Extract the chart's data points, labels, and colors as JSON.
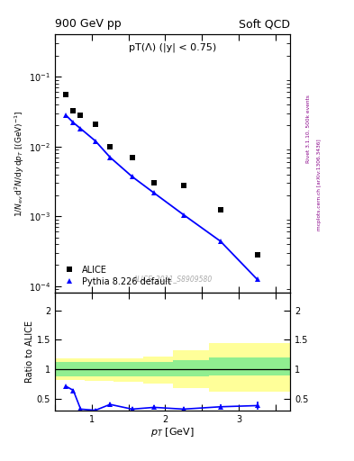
{
  "title_left": "900 GeV pp",
  "title_right": "Soft QCD",
  "annotation": "pT(Λ) (|y| < 0.75)",
  "watermark": "ALICE_2011_S8909580",
  "right_label_top": "Rivet 3.1.10, 500k events",
  "right_label_bot": "mcplots.cern.ch [arXiv:1306.3436]",
  "xlabel": "p_T [GeV]",
  "ylabel_ratio": "Ratio to ALICE",
  "alice_x": [
    0.65,
    0.75,
    0.85,
    1.05,
    1.25,
    1.55,
    1.85,
    2.25,
    2.75,
    3.25
  ],
  "alice_y": [
    0.055,
    0.032,
    0.028,
    0.021,
    0.01,
    0.007,
    0.003,
    0.0028,
    0.00125,
    0.00028
  ],
  "pythia_x": [
    0.65,
    0.75,
    0.85,
    1.05,
    1.25,
    1.55,
    1.85,
    2.25,
    2.75,
    3.25
  ],
  "pythia_y": [
    0.028,
    0.022,
    0.018,
    0.012,
    0.007,
    0.0037,
    0.00215,
    0.00105,
    0.00044,
    0.000125
  ],
  "ratio_x": [
    0.65,
    0.75,
    0.85,
    1.05,
    1.25,
    1.55,
    1.85,
    2.25,
    2.75,
    3.25
  ],
  "ratio_y": [
    0.71,
    0.64,
    0.32,
    0.3,
    0.4,
    0.32,
    0.35,
    0.32,
    0.36,
    0.38
  ],
  "ratio_yerr": [
    0.02,
    0.02,
    0.02,
    0.02,
    0.03,
    0.03,
    0.04,
    0.04,
    0.05,
    0.07
  ],
  "band_x_edges": [
    0.5,
    0.9,
    1.3,
    1.7,
    2.1,
    2.6,
    3.7
  ],
  "band_green_low": [
    0.88,
    0.88,
    0.88,
    0.88,
    0.88,
    0.9
  ],
  "band_green_high": [
    1.12,
    1.12,
    1.12,
    1.12,
    1.15,
    1.2
  ],
  "band_yellow_low": [
    0.82,
    0.8,
    0.78,
    0.75,
    0.68,
    0.62
  ],
  "band_yellow_high": [
    1.18,
    1.18,
    1.18,
    1.22,
    1.32,
    1.45
  ],
  "ylim_main": [
    8e-05,
    0.4
  ],
  "ylim_ratio": [
    0.3,
    2.3
  ],
  "xlim": [
    0.5,
    3.7
  ],
  "color_alice": "black",
  "color_pythia": "blue",
  "color_green": "#90EE90",
  "color_yellow": "#FFFF99"
}
